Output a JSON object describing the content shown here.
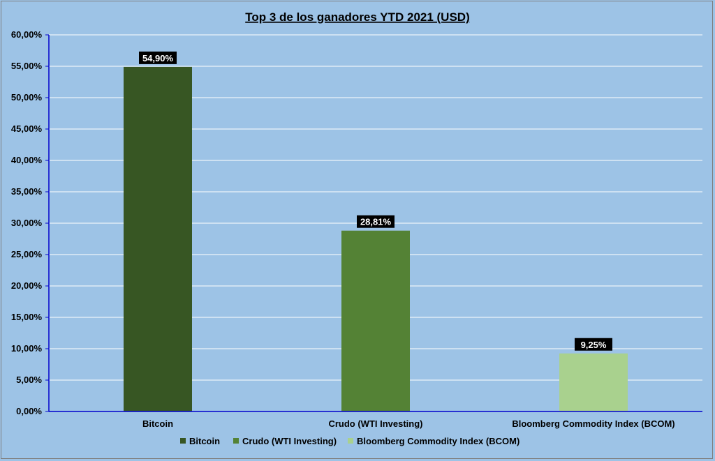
{
  "chart_data": {
    "type": "bar",
    "title": "Top 3 de los ganadores YTD 2021 (USD)",
    "categories": [
      "Bitcoin",
      "Crudo (WTI Investing)",
      "Bloomberg Commodity Index (BCOM)"
    ],
    "values": [
      54.9,
      28.81,
      9.25
    ],
    "data_labels": [
      "54,90%",
      "28,81%",
      "9,25%"
    ],
    "colors": [
      "#375623",
      "#548235",
      "#a9d18e"
    ],
    "ylim": [
      0,
      60
    ],
    "yticks": [
      0,
      5,
      10,
      15,
      20,
      25,
      30,
      35,
      40,
      45,
      50,
      55,
      60
    ],
    "ytick_labels": [
      "0,00%",
      "5,00%",
      "10,00%",
      "15,00%",
      "20,00%",
      "25,00%",
      "30,00%",
      "35,00%",
      "40,00%",
      "45,00%",
      "50,00%",
      "55,00%",
      "60,00%"
    ],
    "grid": true,
    "legend": {
      "position": "bottom",
      "entries": [
        "Bitcoin",
        "Crudo (WTI Investing)",
        "Bloomberg Commodity Index (BCOM)"
      ]
    },
    "xlabel": "",
    "ylabel": ""
  },
  "style": {
    "background": "#9dc3e6",
    "axis_color": "#0000cc",
    "grid_color": "#ffffff",
    "label_bg": "#000000"
  }
}
